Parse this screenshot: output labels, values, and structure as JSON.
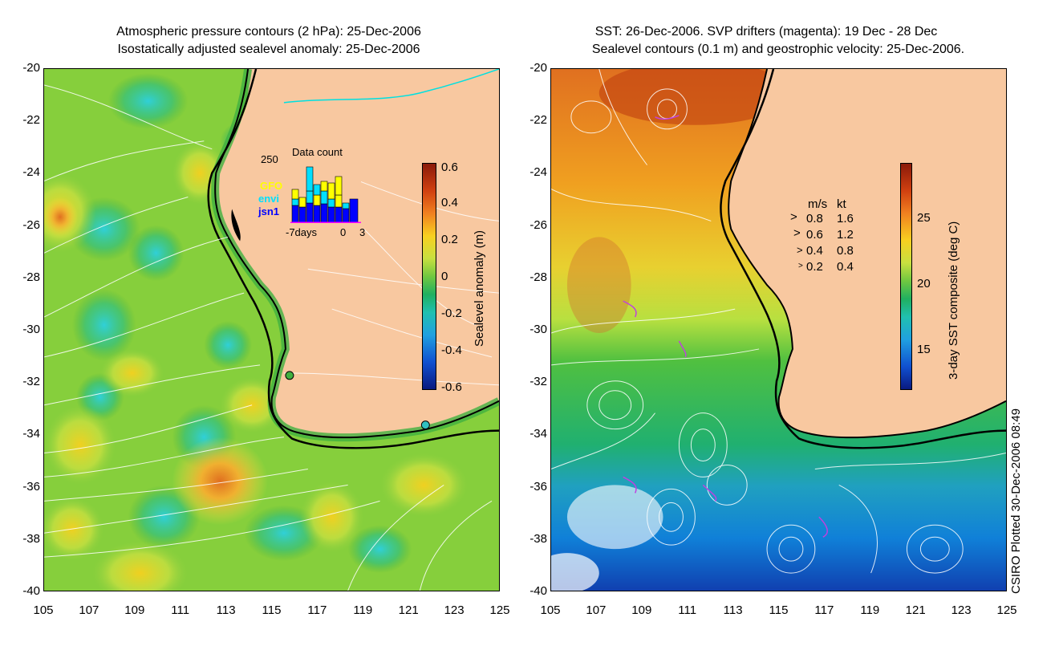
{
  "left_panel": {
    "title_line1": "Atmospheric pressure contours (2 hPa): 25-Dec-2006",
    "title_line2": "Isostatically adjusted sealevel anomaly: 25-Dec-2006",
    "colorbar": {
      "title": "Sealevel anomaly (m)",
      "labels": [
        "0.6",
        "0.4",
        "0.2",
        "0",
        "-0.2",
        "-0.4",
        "-0.6"
      ]
    },
    "inset": {
      "title": "Data count",
      "ymax_label": "250",
      "xlabel_left": "-7days",
      "xlabel_mid": "0",
      "xlabel_right": "3",
      "legend": [
        {
          "label": "GFO",
          "color": "#ffff00"
        },
        {
          "label": "envi",
          "color": "#00e0ff"
        },
        {
          "label": "jsn1",
          "color": "#0000ff"
        }
      ]
    }
  },
  "right_panel": {
    "title_line1": "SST: 26-Dec-2006. SVP drifters (magenta): 19 Dec - 28 Dec",
    "title_line2": "Sealevel contours (0.1 m) and geostrophic velocity: 25-Dec-2006.",
    "colorbar": {
      "title": "3-day SST composite (deg C)",
      "labels": [
        "25",
        "20",
        "15"
      ]
    },
    "velocity_legend": {
      "header_ms": "m/s",
      "header_kt": "kt",
      "rows": [
        {
          "ms": "0.8",
          "kt": "1.6"
        },
        {
          "ms": "0.6",
          "kt": "1.2"
        },
        {
          "ms": "0.4",
          "kt": "0.8"
        },
        {
          "ms": "0.2",
          "kt": "0.4"
        }
      ]
    }
  },
  "axes": {
    "y_ticks": [
      "-20",
      "-22",
      "-24",
      "-26",
      "-28",
      "-30",
      "-32",
      "-34",
      "-36",
      "-38",
      "-40"
    ],
    "x_ticks": [
      "105",
      "107",
      "109",
      "111",
      "113",
      "115",
      "117",
      "119",
      "121",
      "123",
      "125"
    ],
    "lon_range": [
      105,
      125
    ],
    "lat_range": [
      -40,
      -20
    ]
  },
  "credit": "CSIRO Plotted 30-Dec-2006 08:49",
  "colors": {
    "land": "#f8c8a0",
    "coast": "#000000"
  }
}
